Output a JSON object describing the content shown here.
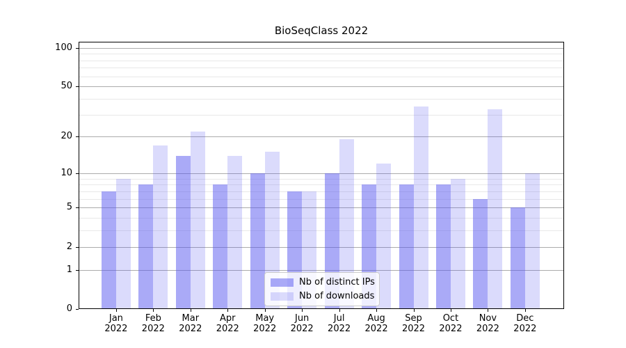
{
  "chart_data": {
    "type": "bar",
    "title": "BioSeqClass 2022",
    "categories": [
      "Jan",
      "Feb",
      "Mar",
      "Apr",
      "May",
      "Jun",
      "Jul",
      "Aug",
      "Sep",
      "Oct",
      "Nov",
      "Dec"
    ],
    "year_label": "2022",
    "series": [
      {
        "name": "Nb of distinct IPs",
        "color": "rgba(85,85,240,0.5)",
        "values": [
          7,
          8,
          14,
          8,
          10,
          7,
          10,
          8,
          8,
          8,
          6,
          5
        ]
      },
      {
        "name": "Nb of downloads",
        "color": "rgba(85,85,240,0.21)",
        "values": [
          9,
          17,
          22,
          14,
          15,
          7,
          19,
          12,
          35,
          9,
          33,
          10
        ]
      }
    ],
    "yscale": "log1p",
    "ylabel": "",
    "xlabel": "",
    "yticks": [
      0,
      1,
      2,
      5,
      10,
      20,
      50,
      100
    ],
    "minor_gridlines": [
      3,
      4,
      6,
      7,
      8,
      9,
      30,
      40,
      60,
      70,
      80,
      90
    ],
    "ylim": [
      0,
      113
    ],
    "grid": true,
    "legend_position": "lower center",
    "colors": {
      "grid_major": "#ababab",
      "grid_minor": "#e8e8e8",
      "axis": "#000000"
    }
  }
}
